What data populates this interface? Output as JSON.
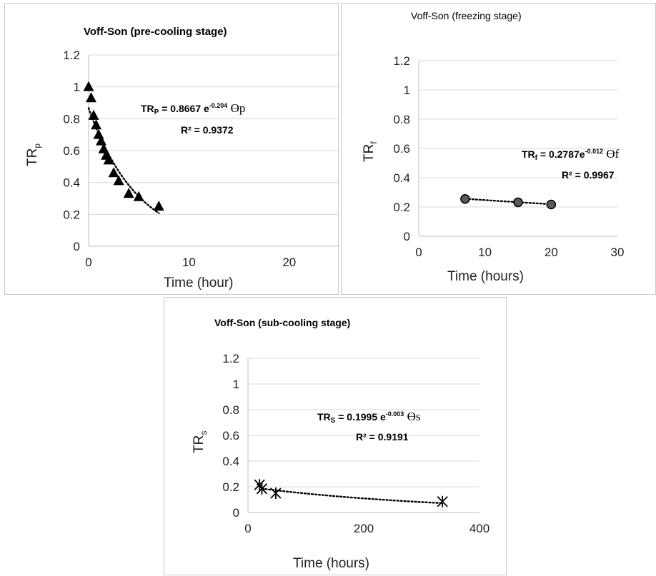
{
  "chart_data": [
    {
      "id": "pre",
      "type": "scatter",
      "title": "Voff-Son (pre-cooling stage)",
      "title_bold": true,
      "xlabel": "Time (hour)",
      "ylabel_main": "TR",
      "ylabel_sub": "p",
      "xlim": [
        0,
        25
      ],
      "ylim": [
        0,
        1.2
      ],
      "xticks": [
        0,
        10,
        20
      ],
      "yticks": [
        0,
        0.2,
        0.4,
        0.6,
        0.8,
        1,
        1.2
      ],
      "xtick_labels": [
        "0",
        "10",
        "20"
      ],
      "ytick_labels": [
        "0",
        "0.2",
        "0.4",
        "0.6",
        "0.8",
        "1",
        "1.2"
      ],
      "grid": "horizontal",
      "marker": "triangle",
      "points": [
        {
          "x": 0,
          "y": 1.0
        },
        {
          "x": 0.25,
          "y": 0.93
        },
        {
          "x": 0.5,
          "y": 0.82
        },
        {
          "x": 0.75,
          "y": 0.76
        },
        {
          "x": 1.0,
          "y": 0.7
        },
        {
          "x": 1.25,
          "y": 0.66
        },
        {
          "x": 1.5,
          "y": 0.61
        },
        {
          "x": 1.75,
          "y": 0.57
        },
        {
          "x": 2.0,
          "y": 0.54
        },
        {
          "x": 2.5,
          "y": 0.46
        },
        {
          "x": 3.0,
          "y": 0.41
        },
        {
          "x": 4.0,
          "y": 0.33
        },
        {
          "x": 5.0,
          "y": 0.31
        },
        {
          "x": 7.0,
          "y": 0.25
        }
      ],
      "trend": {
        "a": 0.8667,
        "b": 0.204,
        "x_from": 0,
        "x_to": 7
      },
      "equation": {
        "lhs": "TR",
        "lhs_sub": "P",
        "rhs": " = 0.8667 e",
        "exp": "-0.204",
        "theta": " ϴp",
        "r2": "R² = 0.9372"
      }
    },
    {
      "id": "frz",
      "type": "scatter",
      "title": "Voff-Son (freezing stage)",
      "title_bold": false,
      "xlabel": "Time (hours)",
      "ylabel_main": "TR",
      "ylabel_sub": "f",
      "xlim": [
        0,
        30
      ],
      "ylim": [
        0,
        1.2
      ],
      "xticks": [
        0,
        10,
        20,
        30
      ],
      "yticks": [
        0,
        0.2,
        0.4,
        0.6,
        0.8,
        1,
        1.2
      ],
      "xtick_labels": [
        "0",
        "10",
        "20",
        "30"
      ],
      "ytick_labels": [
        "0",
        "0.2",
        "0.4",
        "0.6",
        "0.8",
        "1",
        "1.2"
      ],
      "grid": "horizontal",
      "marker": "circle",
      "points": [
        {
          "x": 7,
          "y": 0.255
        },
        {
          "x": 15,
          "y": 0.232
        },
        {
          "x": 20,
          "y": 0.217
        }
      ],
      "trend": {
        "a": 0.2787,
        "b": 0.012,
        "x_from": 7,
        "x_to": 20
      },
      "equation": {
        "lhs": "TR",
        "lhs_sub": "f",
        "rhs": " = 0.2787e",
        "exp": "-0.012",
        "theta": " ϴf",
        "r2": "R² = 0.9967"
      }
    },
    {
      "id": "sub",
      "type": "scatter",
      "title": "Voff-Son (sub-cooling stage)",
      "title_bold": true,
      "xlabel": "Time (hours)",
      "ylabel_main": "TR",
      "ylabel_sub": "s",
      "xlim": [
        0,
        400
      ],
      "ylim": [
        0,
        1.2
      ],
      "xticks": [
        0,
        200,
        400
      ],
      "yticks": [
        0,
        0.2,
        0.4,
        0.6,
        0.8,
        1,
        1.2
      ],
      "xtick_labels": [
        "0",
        "200",
        "400"
      ],
      "ytick_labels": [
        "0",
        "0.2",
        "0.4",
        "0.6",
        "0.8",
        "1",
        "1.2"
      ],
      "grid": "horizontal",
      "marker": "asterisk",
      "points": [
        {
          "x": 20,
          "y": 0.215
        },
        {
          "x": 24,
          "y": 0.185
        },
        {
          "x": 48,
          "y": 0.15
        },
        {
          "x": 336,
          "y": 0.085
        }
      ],
      "trend": {
        "a": 0.1995,
        "b": 0.003,
        "x_from": 24,
        "x_to": 336
      },
      "equation": {
        "lhs": "TR",
        "lhs_sub": "S",
        "rhs": " = 0.1995 e",
        "exp": "-0.003",
        "theta": " ϴs",
        "r2": "R² = 0.9191"
      }
    }
  ]
}
